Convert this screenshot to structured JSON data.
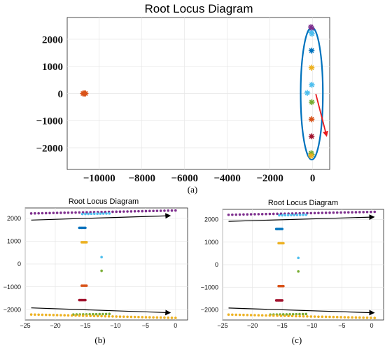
{
  "colors": {
    "purple": "#7e2f8e",
    "blue": "#0072bd",
    "light_blue": "#4dbeee",
    "orange": "#d95319",
    "yellow": "#edb120",
    "green": "#77ac30",
    "dark_red": "#a2142f",
    "ellipse": "#0072bd",
    "arrow_red": "#e8191d",
    "arrow_black": "#000000",
    "grid": "#e6e6e6"
  },
  "figure_labels": {
    "a": "(a)",
    "b": "(b)",
    "c": "(c)"
  },
  "chart_data": [
    {
      "id": "a",
      "type": "scatter",
      "title": "Root Locus Diagram",
      "xlabel": "",
      "ylabel": "",
      "xlim": [
        -11500,
        800
      ],
      "ylim": [
        -2800,
        2800
      ],
      "x_ticks": [
        -10000,
        -8000,
        -6000,
        -4000,
        -2000,
        0
      ],
      "x_tick_labels": [
        "−10000",
        "−8000",
        "−6000",
        "−4000",
        "−2000",
        "0"
      ],
      "y_ticks": [
        -2000,
        -1000,
        0,
        1000,
        2000
      ],
      "y_tick_labels": [
        "−2000",
        "−1000",
        "0",
        "1000",
        "2000"
      ],
      "grid": true,
      "series": [
        {
          "color": "purple",
          "points": [
            [
              -80,
              2450
            ],
            [
              -40,
              2400
            ]
          ]
        },
        {
          "color": "light_blue",
          "points": [
            [
              -60,
              2250
            ],
            [
              -30,
              2200
            ]
          ]
        },
        {
          "color": "blue",
          "points": [
            [
              -50,
              1580
            ]
          ]
        },
        {
          "color": "yellow",
          "points": [
            [
              -50,
              950
            ]
          ]
        },
        {
          "color": "light_blue",
          "points": [
            [
              -40,
              320
            ],
            [
              -250,
              20
            ]
          ]
        },
        {
          "color": "green",
          "points": [
            [
              -40,
              -320
            ]
          ]
        },
        {
          "color": "orange",
          "points": [
            [
              -50,
              -950
            ]
          ]
        },
        {
          "color": "dark_red",
          "points": [
            [
              -50,
              -1580
            ]
          ]
        },
        {
          "color": "green",
          "points": [
            [
              -70,
              -2200
            ],
            [
              -40,
              -2250
            ]
          ]
        },
        {
          "color": "yellow",
          "points": [
            [
              -80,
              -2300
            ]
          ]
        },
        {
          "color": "orange",
          "points": [
            [
              -10760,
              0
            ],
            [
              -10700,
              0
            ],
            [
              -10640,
              0
            ]
          ]
        }
      ],
      "annotations": [
        {
          "kind": "ellipse",
          "center": [
            -40,
            0
          ],
          "rx": 520,
          "ry": 2440,
          "color": "ellipse"
        },
        {
          "kind": "arrow",
          "from": [
            150,
            -20
          ],
          "to": [
            650,
            -1550
          ],
          "color": "arrow_red"
        }
      ]
    },
    {
      "id": "b",
      "type": "scatter",
      "title": "Root Locus Diagram",
      "xlabel": "",
      "ylabel": "",
      "xlim": [
        -25,
        2
      ],
      "ylim": [
        -2450,
        2450
      ],
      "x_ticks": [
        -25,
        -20,
        -15,
        -10,
        -5,
        0
      ],
      "x_tick_labels": [
        "−25",
        "−20",
        "−15",
        "−10",
        "−5",
        "0"
      ],
      "y_ticks": [
        -2000,
        -1000,
        0,
        1000,
        2000
      ],
      "y_tick_labels": [
        "−2000",
        "−1000",
        "0",
        "1000",
        "2000"
      ],
      "grid": true,
      "series": [
        {
          "color": "purple",
          "line": {
            "x": [
              -24,
              0
            ],
            "y": [
              2210,
              2340
            ],
            "n": 40
          }
        },
        {
          "color": "light_blue",
          "line": {
            "x": [
              -15.5,
              -11
            ],
            "y": [
              2185,
              2210
            ],
            "n": 10
          }
        },
        {
          "color": "blue",
          "line": {
            "x": [
              -16,
              -15
            ],
            "y": [
              1580,
              1580
            ],
            "n": 6
          }
        },
        {
          "color": "yellow",
          "line": {
            "x": [
              -15.6,
              -14.8
            ],
            "y": [
              950,
              950
            ],
            "n": 5
          }
        },
        {
          "color": "light_blue",
          "points": [
            [
              -12.3,
              300
            ]
          ]
        },
        {
          "color": "green",
          "points": [
            [
              -12.3,
              -300
            ]
          ]
        },
        {
          "color": "orange",
          "line": {
            "x": [
              -15.6,
              -14.8
            ],
            "y": [
              -950,
              -950
            ],
            "n": 5
          }
        },
        {
          "color": "dark_red",
          "line": {
            "x": [
              -16,
              -15
            ],
            "y": [
              -1580,
              -1580
            ],
            "n": 6
          }
        },
        {
          "color": "green",
          "line": {
            "x": [
              -17,
              -11
            ],
            "y": [
              -2210,
              -2185
            ],
            "n": 12
          }
        },
        {
          "color": "yellow",
          "line": {
            "x": [
              -24,
              0
            ],
            "y": [
              -2210,
              -2360
            ],
            "n": 40
          }
        }
      ],
      "annotations": [
        {
          "kind": "arrow",
          "from": [
            -24,
            1920
          ],
          "to": [
            -1,
            2110
          ],
          "color": "arrow_black"
        },
        {
          "kind": "arrow",
          "from": [
            -24,
            -1920
          ],
          "to": [
            -1,
            -2130
          ],
          "color": "arrow_black"
        }
      ]
    },
    {
      "id": "c",
      "type": "scatter",
      "title": "Root Locus Diagram",
      "xlabel": "",
      "ylabel": "",
      "xlim": [
        -25,
        2
      ],
      "ylim": [
        -2450,
        2450
      ],
      "x_ticks": [
        -25,
        -20,
        -15,
        -10,
        -5,
        0
      ],
      "x_tick_labels": [
        "−25",
        "−20",
        "−15",
        "−10",
        "−5",
        "0"
      ],
      "y_ticks": [
        -2000,
        -1000,
        0,
        1000,
        2000
      ],
      "y_tick_labels": [
        "−2000",
        "−1000",
        "0",
        "1000",
        "2000"
      ],
      "grid": true,
      "series": [
        {
          "color": "purple",
          "line": {
            "x": [
              -24,
              0.5
            ],
            "y": [
              2210,
              2340
            ],
            "n": 40
          }
        },
        {
          "color": "light_blue",
          "line": {
            "x": [
              -15.5,
              -11
            ],
            "y": [
              2185,
              2210
            ],
            "n": 10
          }
        },
        {
          "color": "blue",
          "line": {
            "x": [
              -16,
              -15
            ],
            "y": [
              1580,
              1580
            ],
            "n": 6
          }
        },
        {
          "color": "yellow",
          "line": {
            "x": [
              -15.6,
              -14.8
            ],
            "y": [
              950,
              950
            ],
            "n": 5
          }
        },
        {
          "color": "light_blue",
          "points": [
            [
              -12.3,
              300
            ]
          ]
        },
        {
          "color": "green",
          "points": [
            [
              -12.3,
              -300
            ]
          ]
        },
        {
          "color": "orange",
          "line": {
            "x": [
              -15.6,
              -14.8
            ],
            "y": [
              -950,
              -950
            ],
            "n": 5
          }
        },
        {
          "color": "dark_red",
          "line": {
            "x": [
              -16,
              -15
            ],
            "y": [
              -1580,
              -1580
            ],
            "n": 6
          }
        },
        {
          "color": "green",
          "line": {
            "x": [
              -17,
              -11
            ],
            "y": [
              -2210,
              -2185
            ],
            "n": 12
          }
        },
        {
          "color": "yellow",
          "line": {
            "x": [
              -24,
              0.5
            ],
            "y": [
              -2210,
              -2360
            ],
            "n": 40
          }
        }
      ],
      "annotations": [
        {
          "kind": "arrow",
          "from": [
            -24,
            1920
          ],
          "to": [
            0.3,
            2110
          ],
          "color": "arrow_black"
        },
        {
          "kind": "arrow",
          "from": [
            -24,
            -1920
          ],
          "to": [
            0.3,
            -2130
          ],
          "color": "arrow_black"
        }
      ]
    }
  ]
}
